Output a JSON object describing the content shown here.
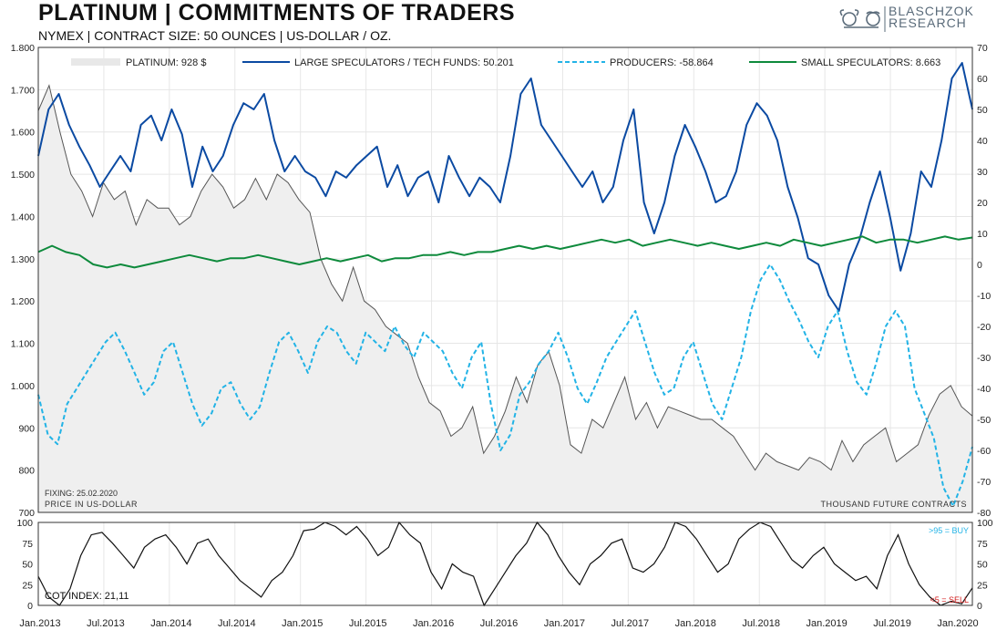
{
  "header": {
    "title": "PLATINUM | COMMITMENTS OF TRADERS",
    "subtitle": "NYMEX | CONTRACT SIZE: 50 OUNCES | US-DOLLAR / OZ.",
    "brand_line1": "BLASCHZOK",
    "brand_line2": "RESEARCH"
  },
  "colors": {
    "price_fill": "#efefef",
    "price_line": "#555555",
    "large_specs": "#0b4aa2",
    "producers": "#22b3e6",
    "small_specs": "#0e8a3c",
    "cot_line": "#111111",
    "buy_text": "#22b3e6",
    "sell_text": "#d42020"
  },
  "chart_data": [
    {
      "type": "line",
      "title": "PLATINUM | COMMITMENTS OF TRADERS",
      "x_ticks": [
        "Jan.2013",
        "Jul.2013",
        "Jan.2014",
        "Jul.2014",
        "Jan.2015",
        "Jul.2015",
        "Jan.2016",
        "Jul.2016",
        "Jan.2017",
        "Jul.2017",
        "Jan.2018",
        "Jul.2018",
        "Jan.2019",
        "Jul.2019",
        "Jan.2020"
      ],
      "y_left": {
        "label": "PRICE IN US-DOLLAR",
        "range": [
          700,
          1800
        ],
        "ticks": [
          "700",
          "800",
          "900",
          "1.000",
          "1.100",
          "1.200",
          "1.300",
          "1.400",
          "1.500",
          "1.600",
          "1.700",
          "1.800"
        ]
      },
      "y_right": {
        "label": "THOUSAND FUTURE CONTRACTS",
        "range": [
          -80,
          70
        ],
        "ticks": [
          "-80",
          "-70",
          "-60",
          "-50",
          "-40",
          "-30",
          "-20",
          "-10",
          "0",
          "10",
          "20",
          "30",
          "40",
          "50",
          "60",
          "70"
        ]
      },
      "legend": [
        "PLATINUM: 928 $",
        "LARGE SPECULATORS / TECH FUNDS: 50.201",
        "PRODUCERS: -58.864",
        "SMALL SPECULATORS: 8.663"
      ],
      "legend_position": "top",
      "fixing_label": "FIXING: 25.02.2020",
      "series": [
        {
          "name": "PLATINUM",
          "axis": "left",
          "style": "area",
          "values": [
            1650,
            1710,
            1600,
            1500,
            1460,
            1400,
            1480,
            1440,
            1460,
            1380,
            1440,
            1420,
            1420,
            1380,
            1400,
            1460,
            1500,
            1470,
            1420,
            1440,
            1490,
            1440,
            1500,
            1480,
            1440,
            1410,
            1300,
            1240,
            1200,
            1280,
            1200,
            1180,
            1140,
            1120,
            1100,
            1020,
            960,
            940,
            880,
            900,
            950,
            840,
            880,
            940,
            1020,
            960,
            1050,
            1080,
            1000,
            860,
            840,
            920,
            900,
            960,
            1020,
            920,
            960,
            900,
            950,
            940,
            930,
            920,
            920,
            900,
            880,
            840,
            800,
            840,
            820,
            810,
            800,
            830,
            820,
            800,
            870,
            820,
            860,
            880,
            900,
            820,
            840,
            860,
            930,
            980,
            1000,
            950,
            928
          ]
        },
        {
          "name": "LARGE SPECULATORS / TECH FUNDS",
          "axis": "right",
          "style": "solid",
          "values": [
            35,
            50,
            55,
            45,
            38,
            32,
            25,
            30,
            35,
            30,
            45,
            48,
            40,
            50,
            42,
            25,
            38,
            30,
            35,
            45,
            52,
            50,
            55,
            40,
            30,
            35,
            30,
            28,
            22,
            30,
            28,
            32,
            35,
            38,
            25,
            32,
            22,
            28,
            30,
            20,
            35,
            28,
            22,
            28,
            25,
            20,
            35,
            55,
            60,
            45,
            40,
            35,
            30,
            25,
            30,
            20,
            25,
            40,
            50,
            20,
            10,
            20,
            35,
            45,
            38,
            30,
            20,
            22,
            30,
            45,
            52,
            48,
            40,
            25,
            15,
            2,
            0,
            -10,
            -15,
            0,
            8,
            20,
            30,
            15,
            -2,
            10,
            30,
            25,
            40,
            60,
            65,
            50
          ]
        },
        {
          "name": "PRODUCERS",
          "axis": "right",
          "style": "dashed",
          "values": [
            -42,
            -55,
            -58,
            -45,
            -40,
            -35,
            -30,
            -25,
            -22,
            -28,
            -35,
            -42,
            -38,
            -28,
            -25,
            -35,
            -45,
            -52,
            -48,
            -40,
            -38,
            -45,
            -50,
            -46,
            -35,
            -25,
            -22,
            -28,
            -35,
            -25,
            -20,
            -22,
            -28,
            -32,
            -22,
            -25,
            -28,
            -20,
            -26,
            -30,
            -22,
            -25,
            -28,
            -35,
            -40,
            -30,
            -25,
            -45,
            -60,
            -55,
            -42,
            -38,
            -32,
            -28,
            -22,
            -30,
            -40,
            -45,
            -38,
            -30,
            -25,
            -20,
            -15,
            -25,
            -35,
            -42,
            -40,
            -30,
            -25,
            -35,
            -45,
            -50,
            -40,
            -30,
            -15,
            -5,
            0,
            -5,
            -12,
            -18,
            -25,
            -30,
            -20,
            -15,
            -28,
            -38,
            -42,
            -32,
            -20,
            -15,
            -20,
            -40,
            -48,
            -56,
            -72,
            -78,
            -70,
            -58.864
          ]
        },
        {
          "name": "SMALL SPECULATORS",
          "axis": "right",
          "style": "solid",
          "values": [
            4,
            6,
            4,
            3,
            0,
            -1,
            0,
            -1,
            0,
            1,
            2,
            3,
            2,
            1,
            2,
            2,
            3,
            2,
            1,
            0,
            1,
            2,
            1,
            2,
            3,
            1,
            2,
            2,
            3,
            3,
            4,
            3,
            4,
            4,
            5,
            6,
            5,
            6,
            5,
            6,
            7,
            8,
            7,
            8,
            6,
            7,
            8,
            7,
            6,
            7,
            6,
            5,
            6,
            7,
            6,
            8,
            7,
            6,
            7,
            8,
            9,
            7,
            8,
            8,
            7,
            8,
            9,
            8,
            8.663
          ]
        }
      ]
    },
    {
      "type": "line",
      "title": "COT INDEX",
      "cot_index_label": "COT INDEX: 21,11",
      "y_range": [
        0,
        100
      ],
      "y_ticks": [
        "0",
        "25",
        "50",
        "75",
        "100"
      ],
      "buy_label": ">95 = BUY",
      "sell_label": "<5 = SELL",
      "values": [
        35,
        10,
        0,
        20,
        60,
        85,
        88,
        75,
        60,
        45,
        70,
        80,
        85,
        70,
        50,
        75,
        80,
        60,
        45,
        30,
        20,
        10,
        30,
        40,
        60,
        90,
        92,
        100,
        95,
        85,
        95,
        80,
        60,
        70,
        100,
        85,
        75,
        40,
        20,
        50,
        40,
        35,
        0,
        20,
        40,
        60,
        75,
        100,
        85,
        60,
        40,
        25,
        50,
        60,
        75,
        80,
        45,
        40,
        50,
        70,
        100,
        95,
        80,
        60,
        40,
        50,
        80,
        92,
        100,
        95,
        75,
        55,
        45,
        60,
        70,
        50,
        40,
        30,
        35,
        20,
        60,
        85,
        50,
        25,
        10,
        0,
        5,
        2,
        21.11
      ]
    }
  ]
}
